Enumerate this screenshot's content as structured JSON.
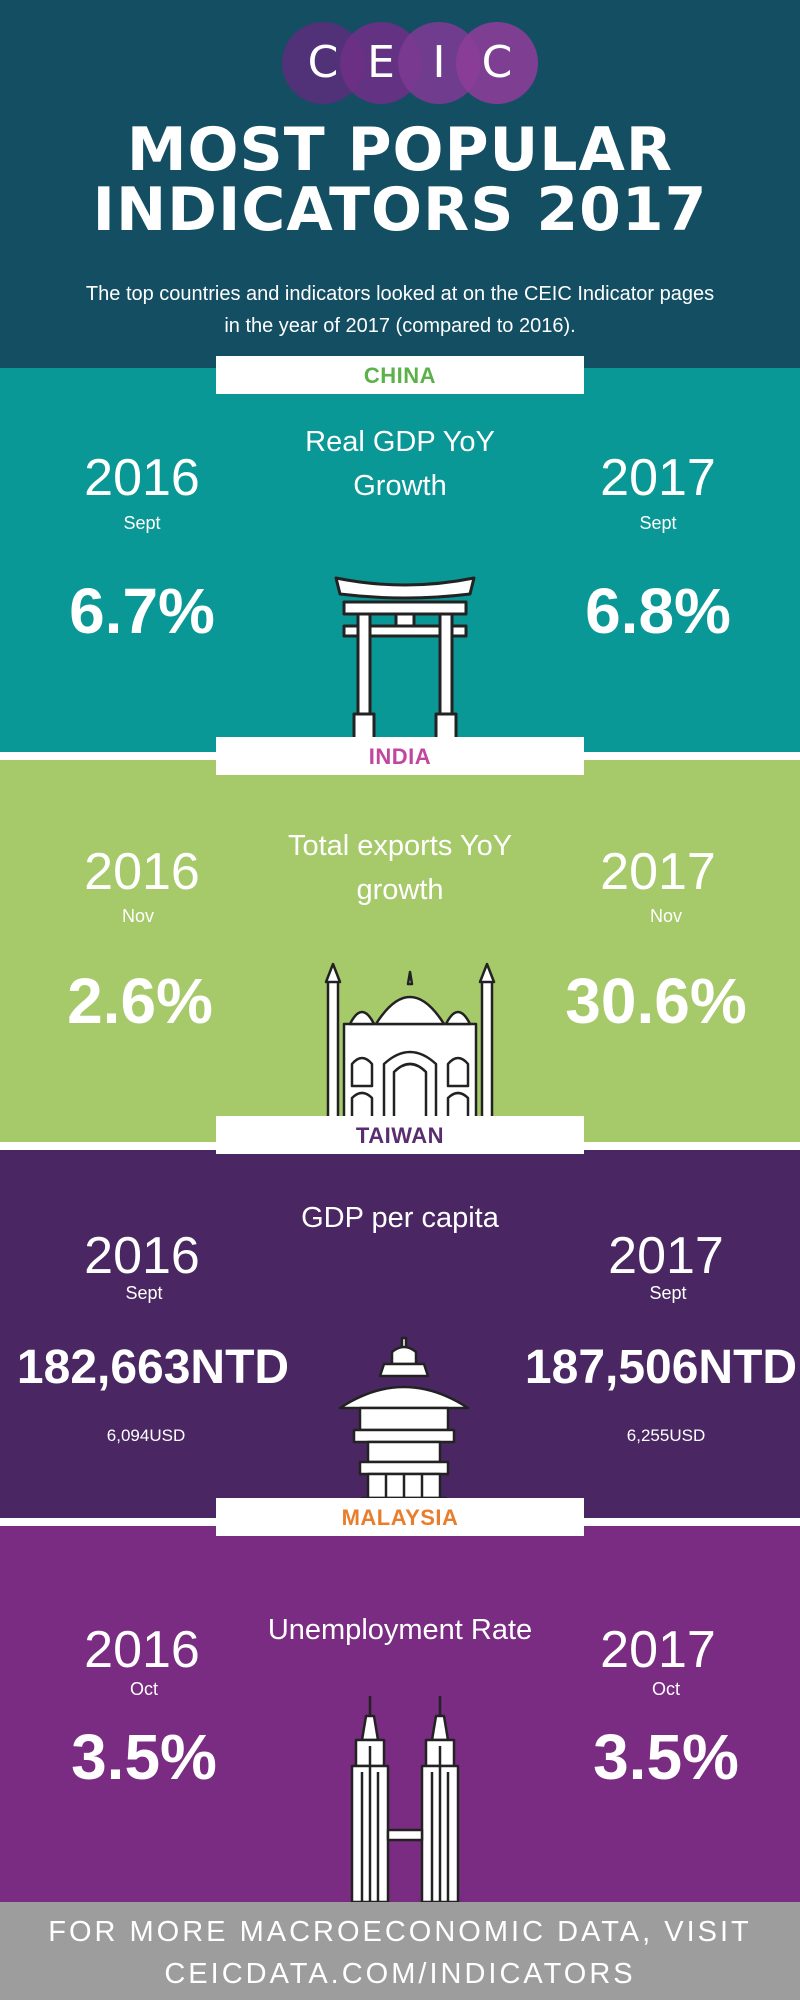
{
  "brand": {
    "logo_letters": [
      "C",
      "E",
      "I",
      "C"
    ],
    "logo_colors": [
      "#5a2d7a",
      "#6e2f86",
      "#7d3a93",
      "#8d3e98"
    ]
  },
  "header": {
    "title_line1": "MOST POPULAR",
    "title_line2": "INDICATORS 2017",
    "intro_line1": "The top countries and indicators looked at on the CEIC Indicator pages",
    "intro_line2": "in the year of 2017 (compared to 2016).",
    "background": "#134e63"
  },
  "sections": [
    {
      "country": "CHINA",
      "country_color": "#5bb14a",
      "background": "#0a9896",
      "indicator_line1": "Real GDP YoY",
      "indicator_line2": "Growth",
      "year_left": "2016",
      "month_left": "Sept",
      "value_left": "6.7%",
      "year_right": "2017",
      "month_right": "Sept",
      "value_right": "6.8%",
      "icon": "torii-gate-icon"
    },
    {
      "country": "INDIA",
      "country_color": "#c2459e",
      "background": "#a6c96a",
      "indicator_line1": "Total exports YoY",
      "indicator_line2": "growth",
      "year_left": "2016",
      "month_left": "Nov",
      "value_left": "2.6%",
      "year_right": "2017",
      "month_right": "Nov",
      "value_right": "30.6%",
      "icon": "taj-mahal-icon"
    },
    {
      "country": "TAIWAN",
      "country_color": "#5a2d70",
      "background": "#4a2662",
      "indicator_line1": "GDP per capita",
      "year_left": "2016",
      "month_left": "Sept",
      "value_left": "182,663NTD",
      "usd_left": "6,094USD",
      "year_right": "2017",
      "month_right": "Sept",
      "value_right": "187,506NTD",
      "usd_right": "6,255USD",
      "icon": "pagoda-tower-icon"
    },
    {
      "country": "MALAYSIA",
      "country_color": "#e87d2c",
      "background": "#7a2b82",
      "indicator_line1": "Unemployment Rate",
      "year_left": "2016",
      "month_left": "Oct",
      "value_left": "3.5%",
      "year_right": "2017",
      "month_right": "Oct",
      "value_right": "3.5%",
      "icon": "petronas-towers-icon"
    }
  ],
  "footer": {
    "line1": "FOR MORE MACROECONOMIC DATA, VISIT",
    "line2": "CEICDATA.COM/INDICATORS",
    "background": "#9d9d9d"
  }
}
